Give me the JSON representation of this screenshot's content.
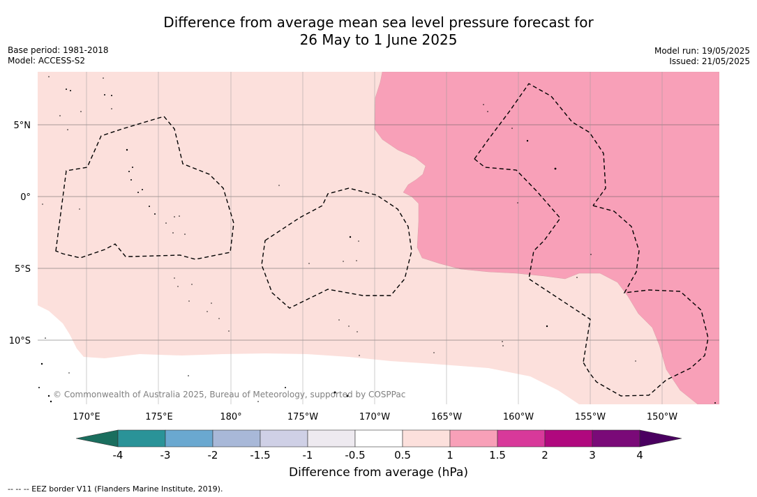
{
  "title": {
    "line1": "Difference from average mean sea level pressure forecast for",
    "line2": "26 May to 1 June 2025"
  },
  "meta_left": {
    "base_period": "Base period: 1981-2018",
    "model": "Model: ACCESS-S2"
  },
  "meta_right": {
    "model_run": "Model run: 19/05/2025",
    "issued": "Issued: 21/05/2025"
  },
  "map": {
    "copyright": "© Commonwealth of Australia 2025, Bureau of Meteorology, supported by COSPPac",
    "lat_labels": [
      "5°N",
      "0°",
      "5°S",
      "10°S"
    ],
    "lon_labels": [
      "170°E",
      "175°E",
      "180°",
      "175°W",
      "170°W",
      "165°W",
      "160°W",
      "155°W",
      "150°W"
    ],
    "fill_colors": {
      "band_0_5_to_1": "#fce0dc",
      "band_1_to_1_5": "#f8a0b8",
      "ocean_outside": "#ffffff"
    }
  },
  "colorbar": {
    "title": "Difference from average (hPa)",
    "tick_labels": [
      "-4",
      "-3",
      "-2",
      "-1.5",
      "-1",
      "-0.5",
      "0.5",
      "1",
      "1.5",
      "2",
      "3",
      "4"
    ],
    "colors": [
      "#1a6e5e",
      "#2a9398",
      "#6aa8d0",
      "#a8b8d8",
      "#cfd0e6",
      "#eeeaf0",
      "#ffffff",
      "#fce0dc",
      "#f8a0b8",
      "#d8399a",
      "#b0087e",
      "#7a0a78",
      "#4a0060"
    ]
  },
  "footer": "--  --  -- EEZ border V11 (Flanders Marine Institute, 2019)."
}
